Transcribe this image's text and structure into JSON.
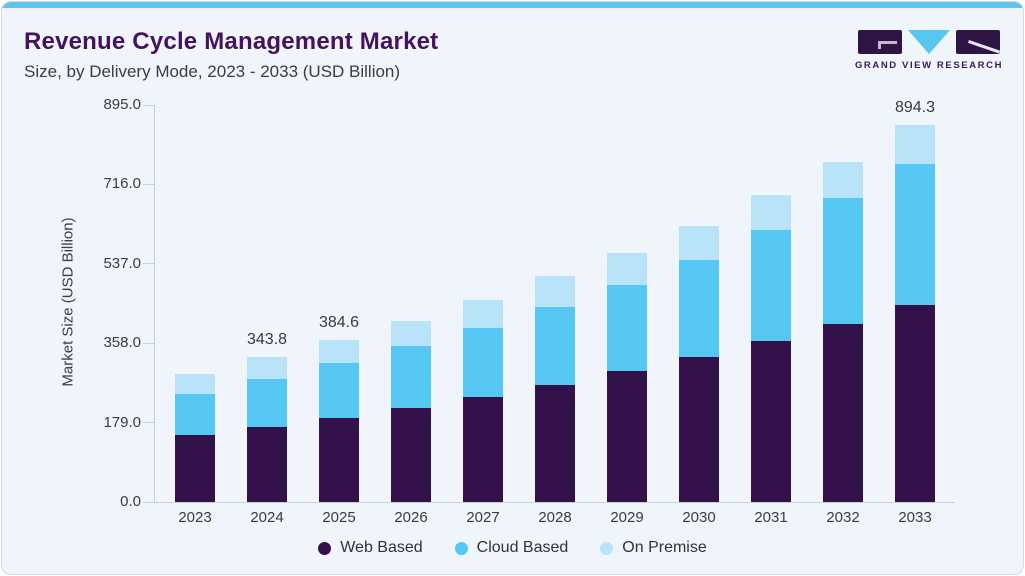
{
  "header": {
    "title": "Revenue Cycle Management Market",
    "subtitle": "Size, by Delivery Mode, 2023 - 2033 (USD Billion)"
  },
  "logo": {
    "text": "GRAND VIEW RESEARCH",
    "icon": "gvr-logo-icon",
    "colors": {
      "purple": "#2f1546",
      "blue": "#57c7f0"
    }
  },
  "accent": {
    "top_stripe_color": "#62c4ee",
    "card_background": "#eff5fa"
  },
  "chart_data": {
    "type": "bar",
    "stacked": true,
    "title": "Revenue Cycle Management Market Size, by Delivery Mode, 2023 - 2033 (USD Billion)",
    "xlabel": "",
    "ylabel": "Market Size (USD Billion)",
    "categories": [
      2023,
      2024,
      2025,
      2026,
      2027,
      2028,
      2029,
      2030,
      2031,
      2032,
      2033
    ],
    "series": [
      {
        "name": "Web Based",
        "color": "#33124b",
        "values": [
          159.5,
          178.5,
          199.9,
          223.7,
          249.9,
          278.5,
          310.7,
          343.9,
          381.9,
          422.2,
          467.3
        ]
      },
      {
        "name": "Cloud Based",
        "color": "#56c7f3",
        "values": [
          97.6,
          114.2,
          130.9,
          145.2,
          161.8,
          183.3,
          204.0,
          230.1,
          263.3,
          298.9,
          334.5
        ]
      },
      {
        "name": "On Premise",
        "color": "#b8e3f9",
        "values": [
          47.6,
          51.1,
          53.8,
          59.5,
          66.7,
          73.7,
          75.9,
          80.7,
          83.0,
          85.4,
          92.5
        ]
      }
    ],
    "totals": [
      304.7,
      343.8,
      384.6,
      428.4,
      478.4,
      535.5,
      590.6,
      654.7,
      728.2,
      806.5,
      894.3
    ],
    "data_labels": [
      {
        "category": 2024,
        "text": "343.8"
      },
      {
        "category": 2025,
        "text": "384.6"
      },
      {
        "category": 2033,
        "text": "894.3"
      }
    ],
    "y_ticks": [
      {
        "value": 0,
        "label": "0.0"
      },
      {
        "value": 179,
        "label": "179.0"
      },
      {
        "value": 358,
        "label": "358.0"
      },
      {
        "value": 537,
        "label": "537.0"
      },
      {
        "value": 716,
        "label": "716.0"
      },
      {
        "value": 895,
        "label": "895.0"
      }
    ],
    "ylim": [
      0,
      895
    ],
    "grid": false,
    "legend_position": "bottom"
  }
}
